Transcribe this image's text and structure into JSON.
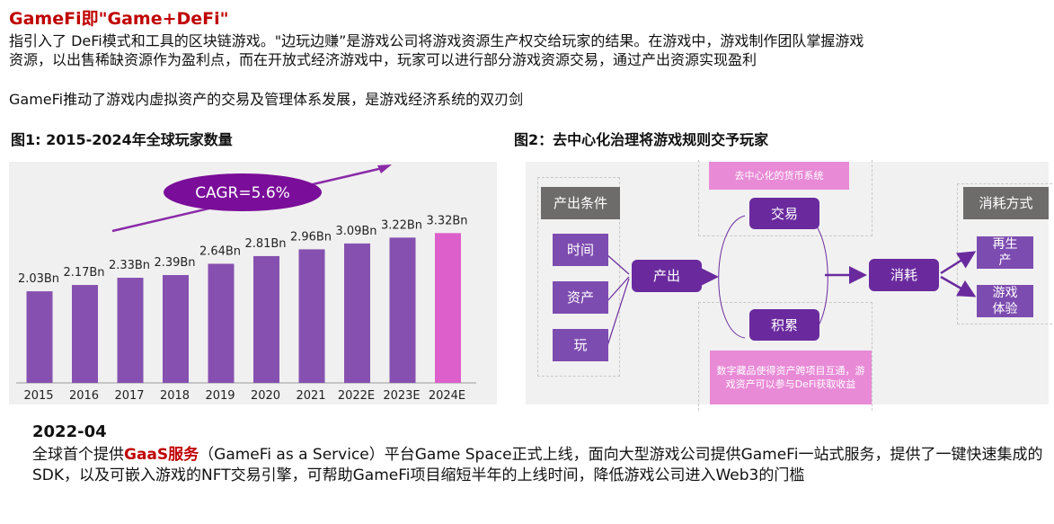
{
  "header": {
    "title": "GameFi即\"Game+DeFi\"",
    "paragraph1_line1": "指引入了 DeFi模式和工具的区块链游戏。\"边玩边赚”是游戏公司将游戏资源生产权交给玩家的结果。在游戏中，游戏制作团队掌握游戏",
    "paragraph1_line2": "资源，以出售稀缺资源作为盈利点，而在开放式经济游戏中，玩家可以进行部分游戏资源交易，通过产出资源实现盈利",
    "paragraph2": "GameFi推动了游戏内虚拟资产的交易及管理体系发展，是游戏经济系统的双刃剑"
  },
  "figure1": {
    "title": "图1: 2015-2024年全球玩家数量",
    "annotation": "CAGR=5.6%"
  },
  "chart_data": {
    "type": "bar",
    "title": "图1: 2015-2024年全球玩家数量",
    "categories": [
      "2015",
      "2016",
      "2017",
      "2018",
      "2019",
      "2020",
      "2021",
      "2022E",
      "2023E",
      "2024E"
    ],
    "values": [
      2.03,
      2.17,
      2.33,
      2.39,
      2.64,
      2.81,
      2.96,
      3.09,
      3.22,
      3.32
    ],
    "value_labels": [
      "2.03Bn",
      "2.17Bn",
      "2.33Bn",
      "2.39Bn",
      "2.64Bn",
      "2.81Bn",
      "2.96Bn",
      "3.09Bn",
      "3.22Bn",
      "3.32Bn"
    ],
    "unit": "Bn",
    "xlabel": "",
    "ylabel": "",
    "ylim": [
      0,
      3.6
    ],
    "grid": false,
    "annotation": "CAGR=5.6%",
    "colors": {
      "bar": "#8650b0",
      "highlight": "#dc5fcb",
      "annotation": "#7a0d99"
    },
    "highlight_index": 9
  },
  "figure2": {
    "title": "图2：去中心化治理将游戏规则交予玩家",
    "inputs_header": "产出条件",
    "inputs": [
      "时间",
      "资产",
      "玩"
    ],
    "output": "产出",
    "top_banner": "去中心化的货币系统",
    "trade": "交易",
    "accumulate": "积累",
    "bottom_banner": "数字藏品使得资产跨项目互通，游戏资产可以参与DeFi获取收益",
    "consume": "消耗",
    "consume_header": "消耗方式",
    "consume_ways": [
      "再生产",
      "游戏体验"
    ]
  },
  "news": {
    "date": "2022-04",
    "text_before": "全球首个提供",
    "highlight": "GaaS服务",
    "text_after": "（GameFi as a Service）平台Game Space正式上线，面向大型游戏公司提供GameFi一站式服务，提供了一键快速集成的SDK，以及可嵌入游戏的NFT交易引擎，可帮助GameFi项目缩短半年的上线时间，降低游戏公司进入Web3的门槛"
  }
}
